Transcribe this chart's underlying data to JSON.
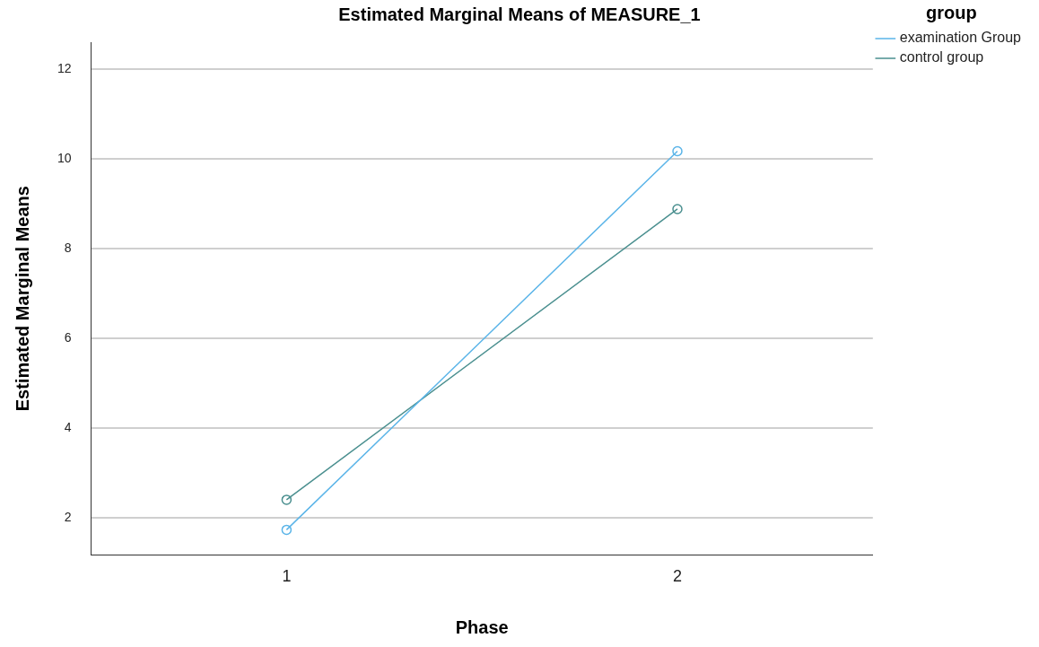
{
  "chart_data": {
    "type": "line",
    "title": "Estimated Marginal Means of MEASURE_1",
    "xlabel": "Phase",
    "ylabel": "Estimated Marginal Means",
    "legend_title": "group",
    "categories": [
      "1",
      "2"
    ],
    "series": [
      {
        "name": "examination Group",
        "color": "#5ab4e8",
        "values": [
          1.73,
          10.17
        ]
      },
      {
        "name": "control group",
        "color": "#4a8f8f",
        "values": [
          2.4,
          8.88
        ]
      }
    ],
    "ylim": [
      1.17,
      12.6
    ],
    "yticks": [
      2,
      4,
      6,
      8,
      10,
      12
    ],
    "grid": "y",
    "legend": "top right",
    "marker": "circle",
    "line_style": "solid"
  }
}
